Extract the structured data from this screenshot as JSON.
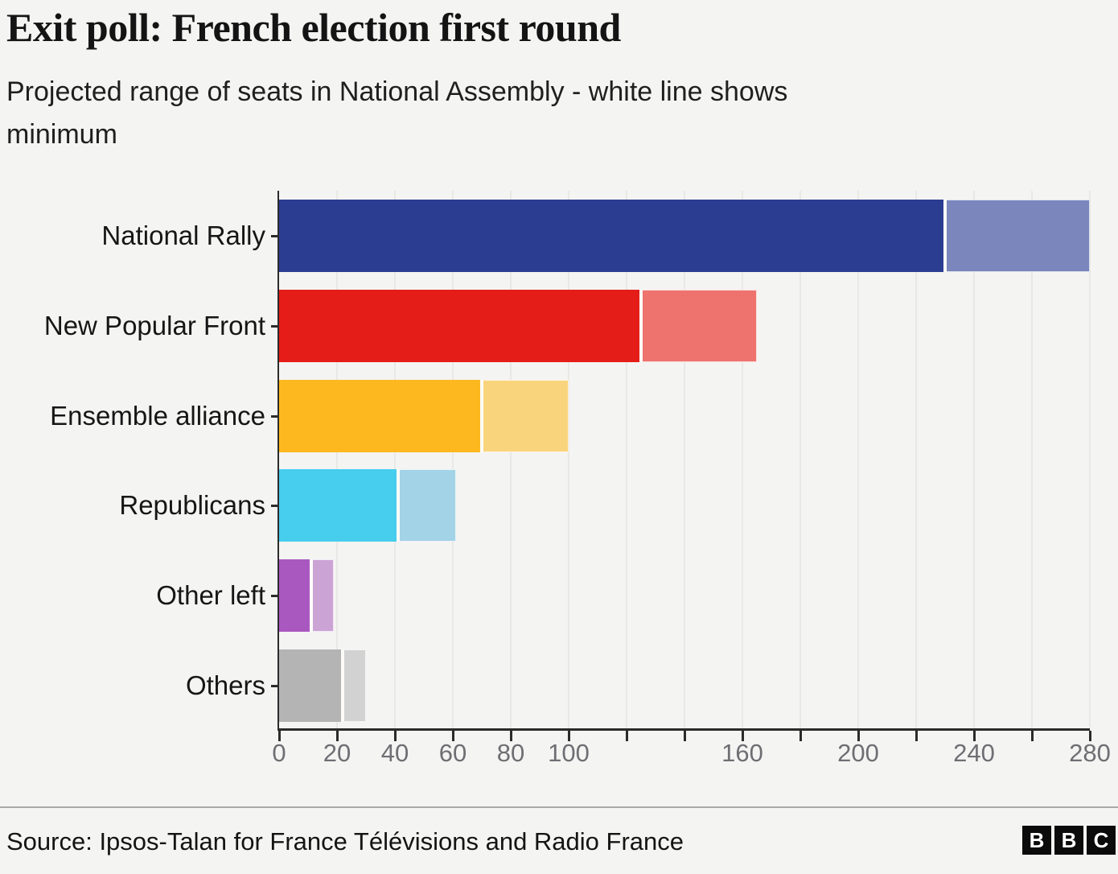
{
  "header": {
    "title": "Exit poll: French election first round",
    "subtitle": "Projected range of seats in National Assembly - white line shows minimum"
  },
  "footer": {
    "source": "Source: Ipsos-Talan for France Télévisions and Radio France",
    "logo_letters": [
      "B",
      "B",
      "C"
    ]
  },
  "colors": {
    "background": "#f4f4f3",
    "axis": "#2b2b2b",
    "gridline": "#e9e8e6",
    "tick_label": "#6e6e73",
    "text": "#161616",
    "min_line": "#fcfbf8",
    "divider": "#a9a9a9"
  },
  "chart_data": {
    "type": "bar",
    "orientation": "horizontal",
    "title": "Exit poll: French election first round",
    "subtitle": "Projected range of seats in National Assembly - white line shows minimum",
    "xlabel": "",
    "ylabel": "",
    "categories": [
      "National Rally",
      "New Popular Front",
      "Ensemble alliance",
      "Republicans",
      "Other left",
      "Others"
    ],
    "series": [
      {
        "name": "minimum seats",
        "values": [
          230,
          125,
          70,
          41,
          11,
          22
        ]
      },
      {
        "name": "maximum seats",
        "values": [
          280,
          165,
          100,
          61,
          19,
          30
        ]
      }
    ],
    "bar_colors": [
      {
        "min": "#2b3d91",
        "range": "#7a86bc"
      },
      {
        "min": "#e51d18",
        "range": "#ee736f"
      },
      {
        "min": "#fdb81f",
        "range": "#fad47d"
      },
      {
        "min": "#47cdee",
        "range": "#a3d3e6"
      },
      {
        "min": "#a958c0",
        "range": "#cba3d5"
      },
      {
        "min": "#b4b4b4",
        "range": "#d2d2d2"
      }
    ],
    "xlim": [
      0,
      280
    ],
    "ticks": [
      0,
      20,
      40,
      60,
      80,
      100,
      120,
      140,
      160,
      180,
      200,
      220,
      240,
      260,
      280
    ],
    "labeled_ticks": [
      0,
      20,
      40,
      60,
      80,
      100,
      160,
      200,
      240,
      280
    ],
    "grid": true,
    "legend": false,
    "min_marker": "white line at minimum value"
  }
}
